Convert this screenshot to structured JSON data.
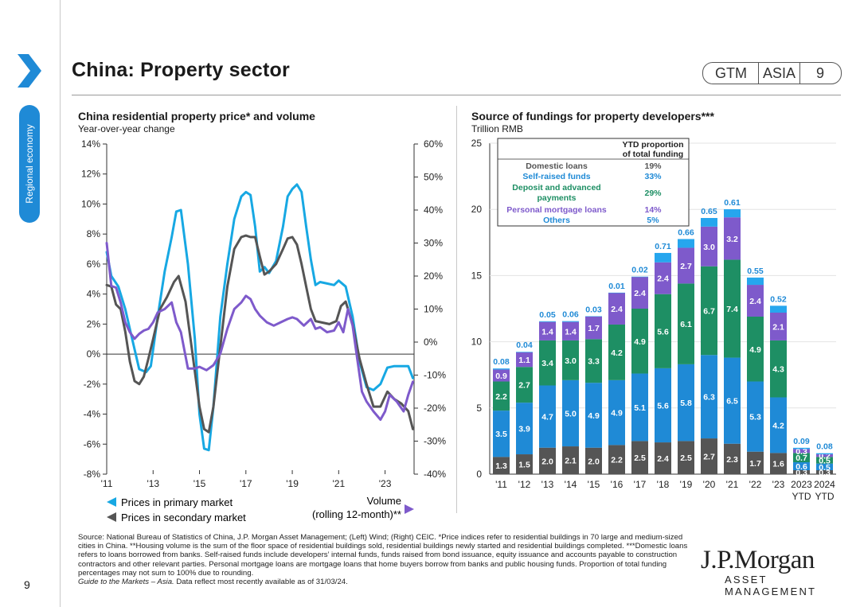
{
  "header": {
    "title": "China: Property sector",
    "badge": {
      "gtm": "GTM",
      "region": "ASIA",
      "page": "9"
    },
    "section": "Regional economy",
    "page_number": "9"
  },
  "left_chart": {
    "title": "China residential property price* and volume",
    "subtitle": "Year-over-year change",
    "legend": {
      "primary": "Prices in primary market",
      "secondary": "Prices in secondary market",
      "volume_line1": "Volume",
      "volume_line2": "(rolling 12-month)**"
    }
  },
  "right_chart": {
    "title": "Source of fundings for property developers***",
    "subtitle": "Trillion RMB",
    "table": {
      "header_line1": "YTD proportion",
      "header_line2": "of total funding",
      "rows": [
        {
          "label": "Domestic loans",
          "value": "19%"
        },
        {
          "label": "Self-raised funds",
          "value": "33%"
        },
        {
          "label": "Deposit and advanced payments",
          "value": "29%"
        },
        {
          "label": "Personal mortgage loans",
          "value": "14%"
        },
        {
          "label": "Others",
          "value": "5%"
        }
      ]
    }
  },
  "colors": {
    "primary_line": "#17a8e3",
    "secondary_line": "#555555",
    "volume_line": "#7e5acb",
    "domestic": "#555555",
    "self_raised": "#1f8ad6",
    "deposit": "#1e8f64",
    "mortgage": "#7e5acb",
    "others": "#26a6ee",
    "accent": "#1f8ad6"
  },
  "chart_data": [
    {
      "type": "line",
      "title": "China residential property price* and volume",
      "subtitle": "Year-over-year change",
      "x_ticks": [
        "'11",
        "'13",
        "'15",
        "'17",
        "'19",
        "'21",
        "'23"
      ],
      "x_range": [
        2011.0,
        2024.25
      ],
      "y_left": {
        "ticks": [
          "14%",
          "12%",
          "10%",
          "8%",
          "6%",
          "4%",
          "2%",
          "0%",
          "-2%",
          "-4%",
          "-6%",
          "-8%"
        ],
        "range": [
          -8,
          14
        ]
      },
      "y_right": {
        "ticks": [
          "60%",
          "50%",
          "40%",
          "30%",
          "20%",
          "10%",
          "0%",
          "-10%",
          "-20%",
          "-30%",
          "-40%"
        ],
        "range": [
          -40,
          60
        ]
      },
      "series": [
        {
          "name": "Prices in primary market",
          "axis": "left",
          "x": [
            2011.0,
            2011.2,
            2011.5,
            2011.8,
            2012.1,
            2012.4,
            2012.7,
            2012.9,
            2013.2,
            2013.5,
            2013.8,
            2014.0,
            2014.2,
            2014.5,
            2014.8,
            2015.0,
            2015.2,
            2015.4,
            2015.6,
            2015.9,
            2016.2,
            2016.5,
            2016.8,
            2017.0,
            2017.2,
            2017.4,
            2017.6,
            2017.8,
            2018.0,
            2018.3,
            2018.6,
            2018.8,
            2019.0,
            2019.2,
            2019.4,
            2019.6,
            2019.8,
            2020.0,
            2020.2,
            2020.5,
            2020.8,
            2021.0,
            2021.3,
            2021.6,
            2021.9,
            2022.2,
            2022.5,
            2022.8,
            2023.1,
            2023.4,
            2023.7,
            2024.0,
            2024.2
          ],
          "y": [
            6.8,
            5.2,
            4.5,
            3.0,
            1.0,
            -1.0,
            -1.2,
            -0.8,
            2.5,
            5.5,
            7.8,
            9.5,
            9.6,
            6.0,
            1.0,
            -4.0,
            -6.3,
            -6.4,
            -3.5,
            2.5,
            6.0,
            9.0,
            10.5,
            10.8,
            10.6,
            8.5,
            5.5,
            5.8,
            5.4,
            6.2,
            8.5,
            10.5,
            11.0,
            11.3,
            10.8,
            8.5,
            6.3,
            4.6,
            4.8,
            4.7,
            4.6,
            4.9,
            4.5,
            2.5,
            -0.5,
            -2.2,
            -2.4,
            -2.0,
            -0.9,
            -0.8,
            -0.8,
            -0.8,
            -1.6
          ]
        },
        {
          "name": "Prices in secondary market",
          "axis": "left",
          "x": [
            2011.0,
            2011.2,
            2011.4,
            2011.6,
            2011.8,
            2012.0,
            2012.2,
            2012.4,
            2012.6,
            2012.8,
            2013.0,
            2013.3,
            2013.6,
            2013.9,
            2014.1,
            2014.4,
            2014.7,
            2015.0,
            2015.2,
            2015.4,
            2015.6,
            2015.9,
            2016.2,
            2016.5,
            2016.8,
            2017.0,
            2017.2,
            2017.4,
            2017.6,
            2017.8,
            2018.0,
            2018.3,
            2018.6,
            2018.8,
            2019.0,
            2019.2,
            2019.4,
            2019.6,
            2019.8,
            2020.0,
            2020.3,
            2020.6,
            2020.9,
            2021.1,
            2021.3,
            2021.6,
            2021.9,
            2022.2,
            2022.5,
            2022.8,
            2023.1,
            2023.4,
            2023.7,
            2024.0,
            2024.2
          ],
          "y": [
            4.6,
            4.5,
            3.3,
            3.0,
            1.5,
            -0.5,
            -1.8,
            -2.0,
            -1.5,
            -0.3,
            1.0,
            3.0,
            3.8,
            4.8,
            5.2,
            3.5,
            0.0,
            -3.5,
            -5.0,
            -5.2,
            -3.5,
            0.5,
            4.5,
            7.0,
            7.8,
            7.9,
            7.8,
            7.8,
            6.5,
            5.3,
            5.5,
            6.0,
            7.0,
            7.7,
            7.8,
            7.3,
            6.0,
            4.5,
            3.0,
            2.2,
            2.1,
            2.0,
            2.2,
            3.2,
            3.5,
            2.0,
            -0.3,
            -2.0,
            -3.5,
            -3.5,
            -2.5,
            -3.0,
            -3.3,
            -3.8,
            -5.0
          ]
        },
        {
          "name": "Volume (rolling 12-month)**",
          "axis": "right",
          "x": [
            2011.0,
            2011.2,
            2011.4,
            2011.6,
            2011.8,
            2012.0,
            2012.2,
            2012.4,
            2012.6,
            2012.8,
            2013.0,
            2013.2,
            2013.5,
            2013.8,
            2014.0,
            2014.2,
            2014.5,
            2014.8,
            2015.0,
            2015.3,
            2015.6,
            2015.9,
            2016.2,
            2016.5,
            2016.8,
            2017.0,
            2017.2,
            2017.4,
            2017.6,
            2017.9,
            2018.2,
            2018.5,
            2018.8,
            2019.0,
            2019.2,
            2019.5,
            2019.8,
            2020.0,
            2020.2,
            2020.5,
            2020.8,
            2021.0,
            2021.2,
            2021.4,
            2021.6,
            2021.8,
            2022.0,
            2022.2,
            2022.5,
            2022.8,
            2023.0,
            2023.2,
            2023.5,
            2023.8,
            2024.0,
            2024.2
          ],
          "y": [
            30.0,
            17.0,
            16.5,
            12.0,
            6.0,
            3.0,
            1.0,
            2.5,
            3.5,
            4.0,
            6.0,
            9.0,
            10.0,
            12.0,
            6.0,
            3.0,
            -8.0,
            -8.0,
            -7.5,
            -8.5,
            -7.0,
            -3.5,
            4.0,
            10.0,
            12.0,
            14.0,
            13.0,
            10.0,
            8.0,
            6.0,
            5.0,
            6.0,
            7.0,
            7.5,
            7.0,
            5.0,
            7.0,
            4.0,
            4.5,
            3.0,
            3.5,
            6.0,
            3.0,
            10.0,
            5.0,
            -5.0,
            -15.0,
            -18.0,
            -21.0,
            -23.5,
            -21.0,
            -16.0,
            -18.0,
            -21.0,
            -16.0,
            -12.0
          ]
        }
      ]
    },
    {
      "type": "bar",
      "stacked": true,
      "title": "Source of fundings for property developers***",
      "ylabel": "Trillion RMB",
      "categories": [
        "'11",
        "'12",
        "'13",
        "'14",
        "'15",
        "'16",
        "'17",
        "'18",
        "'19",
        "'20",
        "'21",
        "'22",
        "'23",
        "2023 YTD",
        "2024 YTD"
      ],
      "ylim": [
        0,
        25
      ],
      "y_ticks": [
        0,
        5,
        10,
        15,
        20,
        25
      ],
      "series": [
        {
          "name": "Domestic loans",
          "values": [
            1.3,
            1.5,
            2.0,
            2.1,
            2.0,
            2.2,
            2.5,
            2.4,
            2.5,
            2.7,
            2.3,
            1.7,
            1.6,
            0.3,
            0.3
          ]
        },
        {
          "name": "Self-raised funds",
          "values": [
            3.5,
            3.9,
            4.7,
            5.0,
            4.9,
            4.9,
            5.1,
            5.6,
            5.8,
            6.3,
            6.5,
            5.3,
            4.2,
            0.6,
            0.5
          ]
        },
        {
          "name": "Deposit and advanced payments",
          "values": [
            2.2,
            2.7,
            3.4,
            3.0,
            3.3,
            4.2,
            4.9,
            5.6,
            6.1,
            6.7,
            7.4,
            4.9,
            4.3,
            0.7,
            0.5
          ]
        },
        {
          "name": "Personal mortgage loans",
          "values": [
            0.9,
            1.1,
            1.4,
            1.4,
            1.7,
            2.4,
            2.4,
            2.4,
            2.7,
            3.0,
            3.2,
            2.4,
            2.1,
            0.3,
            0.2
          ]
        },
        {
          "name": "Others",
          "values": [
            0.08,
            0.04,
            0.05,
            0.06,
            0.03,
            0.01,
            0.02,
            0.71,
            0.66,
            0.65,
            0.61,
            0.55,
            0.52,
            0.09,
            0.08
          ]
        }
      ],
      "top_labels": [
        "0.08",
        "0.04",
        "0.05",
        "0.06",
        "0.03",
        "0.01",
        "0.02",
        "0.71",
        "0.66",
        "0.65",
        "0.61",
        "0.55",
        "0.52",
        "0.09",
        "0.08"
      ]
    }
  ],
  "footer": {
    "source": "Source: National Bureau of Statistics of China, J.P. Morgan Asset Management; (Left) Wind; (Right) CEIC. *Price indices refer to residential buildings in 70 large and medium-sized cities in China. **Housing volume is the sum of the floor space of residential buildings sold, residential buildings newly started and residential buildings completed. ***Domestic loans refers to loans borrowed from banks. Self-raised funds include developers’ internal funds, funds raised from bond issuance, equity issuance and accounts payable to construction contractors and other relevant parties. Personal mortgage loans are mortgage loans that home buyers borrow from banks and public housing funds. Proportion of total funding percentages may not sum to 100% due to rounding.",
    "guide_italic": "Guide to the Markets – Asia.",
    "guide_rest": " Data reflect most recently available as of 31/03/24.",
    "logo_main": "J.P.Morgan",
    "logo_sub": "ASSET MANAGEMENT"
  }
}
